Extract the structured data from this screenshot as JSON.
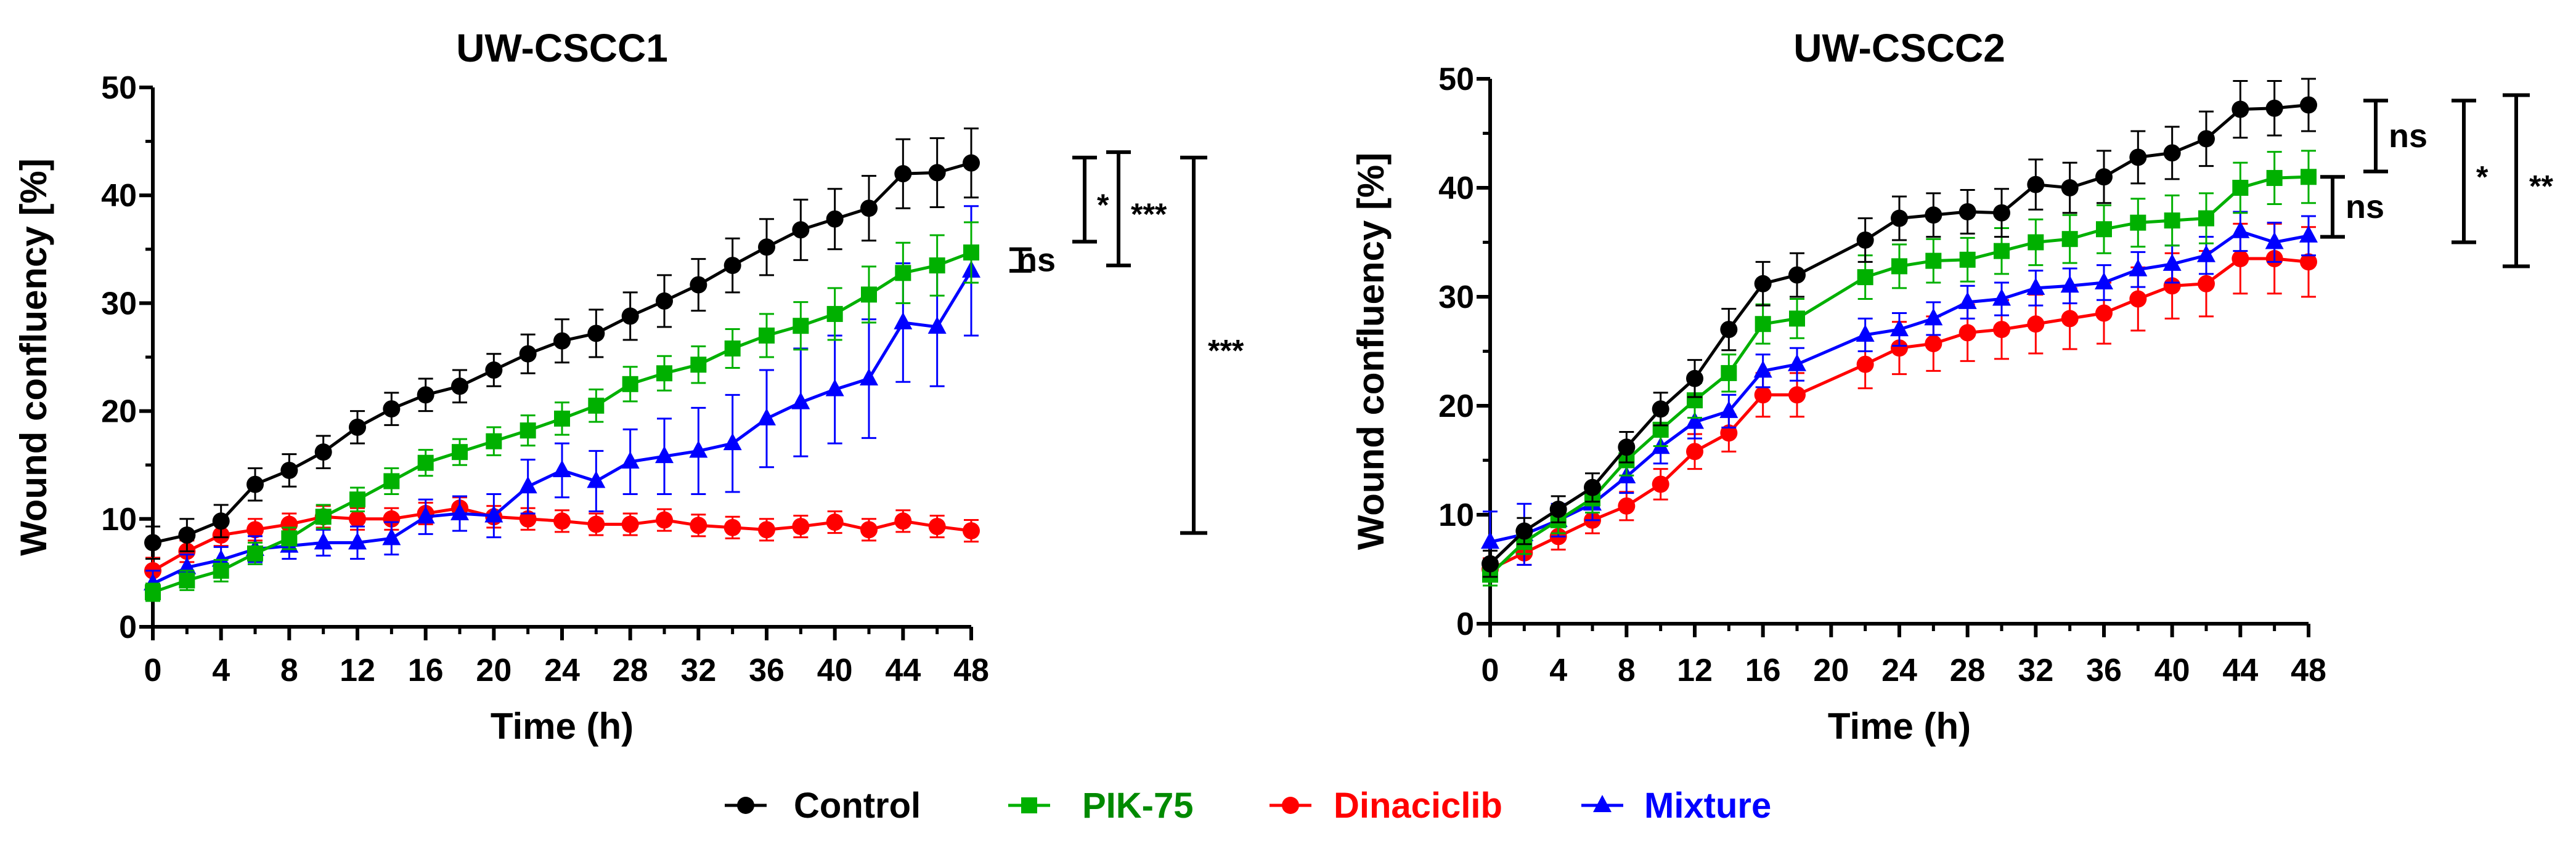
{
  "chart_data": [
    {
      "type": "line",
      "title": "UW-CSCC1",
      "xlabel": "Time (h)",
      "ylabel": "Wound confluency [%]",
      "xlim": [
        0,
        48
      ],
      "ylim": [
        0,
        50
      ],
      "xticks": [
        "0",
        "4",
        "8",
        "12",
        "16",
        "20",
        "24",
        "28",
        "32",
        "36",
        "40",
        "44",
        "48"
      ],
      "yticks": [
        "0",
        "10",
        "20",
        "30",
        "40",
        "50"
      ],
      "x": [
        0,
        2,
        4,
        6,
        8,
        10,
        12,
        14,
        16,
        18,
        20,
        22,
        24,
        26,
        28,
        30,
        32,
        34,
        36,
        38,
        40,
        42,
        44,
        46,
        48
      ],
      "series": [
        {
          "name": "Control",
          "values": [
            7.8,
            8.5,
            9.8,
            13.2,
            14.5,
            16.2,
            18.5,
            20.2,
            21.5,
            22.3,
            23.8,
            25.3,
            26.5,
            27.2,
            28.8,
            30.2,
            31.7,
            33.5,
            35.2,
            36.8,
            37.8,
            38.8,
            42.0,
            42.1,
            43.0
          ],
          "errors": [
            1.5,
            1.5,
            1.5,
            1.5,
            1.5,
            1.5,
            1.5,
            1.5,
            1.5,
            1.5,
            1.5,
            1.8,
            2.0,
            2.2,
            2.2,
            2.4,
            2.4,
            2.5,
            2.6,
            2.8,
            2.8,
            3.0,
            3.2,
            3.2,
            3.2
          ]
        },
        {
          "name": "PIK-75",
          "values": [
            3.2,
            4.3,
            5.2,
            6.8,
            8.2,
            10.2,
            11.8,
            13.5,
            15.2,
            16.2,
            17.2,
            18.2,
            19.3,
            20.5,
            22.5,
            23.5,
            24.3,
            25.8,
            27.0,
            27.9,
            29.0,
            30.8,
            32.8,
            33.5,
            34.7
          ],
          "errors": [
            0.8,
            0.9,
            1.0,
            1.0,
            1.0,
            1.1,
            1.1,
            1.2,
            1.2,
            1.2,
            1.3,
            1.4,
            1.5,
            1.5,
            1.6,
            1.6,
            1.7,
            1.8,
            2.0,
            2.2,
            2.4,
            2.6,
            2.8,
            2.8,
            2.8
          ]
        },
        {
          "name": "Dinaciclib",
          "values": [
            5.2,
            7.0,
            8.5,
            9.0,
            9.5,
            10.2,
            10.0,
            10.0,
            10.5,
            11.0,
            10.2,
            10.0,
            9.8,
            9.5,
            9.5,
            9.9,
            9.4,
            9.2,
            9.0,
            9.3,
            9.7,
            9.0,
            9.8,
            9.3,
            8.9
          ],
          "errors": [
            1.2,
            1.0,
            1.0,
            1.0,
            1.0,
            1.0,
            1.0,
            1.0,
            1.0,
            1.0,
            1.0,
            1.0,
            1.0,
            1.0,
            1.0,
            1.0,
            1.0,
            1.0,
            1.0,
            1.0,
            1.0,
            1.0,
            1.0,
            1.0,
            1.0
          ]
        },
        {
          "name": "Mixture",
          "values": [
            4.0,
            5.5,
            6.2,
            7.2,
            7.5,
            7.8,
            7.8,
            8.2,
            10.2,
            10.5,
            10.3,
            13.0,
            14.5,
            13.5,
            15.3,
            15.8,
            16.3,
            17.0,
            19.3,
            20.8,
            22.0,
            23.0,
            28.2,
            27.8,
            33.0
          ],
          "errors": [
            1.2,
            1.2,
            1.2,
            1.2,
            1.2,
            1.2,
            1.5,
            1.5,
            1.6,
            1.6,
            2.0,
            2.5,
            2.5,
            2.8,
            3.0,
            3.5,
            4.0,
            4.5,
            4.5,
            5.0,
            5.0,
            5.5,
            5.5,
            5.5,
            6.0
          ]
        }
      ],
      "significance": [
        {
          "label": "ns",
          "y_range": [
            33.0,
            35.0
          ]
        },
        {
          "label": "*",
          "y_range": [
            35.7,
            43.5
          ]
        },
        {
          "label": "***",
          "y_range": [
            33.5,
            44.0
          ]
        },
        {
          "label": "***",
          "y_range": [
            8.7,
            43.5
          ]
        }
      ]
    },
    {
      "type": "line",
      "title": "UW-CSCC2",
      "xlabel": "Time (h)",
      "ylabel": "Wound confluency [%]",
      "xlim": [
        0,
        48
      ],
      "ylim": [
        0,
        50
      ],
      "xticks": [
        "0",
        "4",
        "8",
        "12",
        "16",
        "20",
        "24",
        "28",
        "32",
        "36",
        "40",
        "44",
        "48"
      ],
      "yticks": [
        "0",
        "10",
        "20",
        "30",
        "40",
        "50"
      ],
      "x": [
        0,
        2,
        4,
        6,
        8,
        10,
        12,
        14,
        16,
        18,
        22,
        24,
        26,
        28,
        30,
        32,
        34,
        36,
        38,
        40,
        42,
        44,
        46,
        48
      ],
      "series": [
        {
          "name": "Control",
          "values": [
            5.5,
            8.5,
            10.5,
            12.5,
            16.2,
            19.7,
            22.5,
            27.0,
            31.2,
            32.0,
            35.2,
            37.2,
            37.5,
            37.8,
            37.7,
            40.3,
            40.0,
            41.0,
            42.8,
            43.2,
            44.5,
            47.2,
            47.3,
            47.6
          ],
          "errors": [
            1.2,
            1.2,
            1.2,
            1.3,
            1.4,
            1.5,
            1.7,
            1.9,
            2.0,
            2.0,
            2.0,
            2.0,
            2.0,
            2.0,
            2.2,
            2.3,
            2.3,
            2.4,
            2.4,
            2.4,
            2.5,
            2.6,
            2.5,
            2.4
          ]
        },
        {
          "name": "PIK-75",
          "values": [
            4.5,
            7.5,
            9.5,
            11.5,
            15.0,
            17.8,
            20.5,
            23.0,
            27.5,
            28.0,
            31.8,
            32.8,
            33.3,
            33.4,
            34.2,
            35.0,
            35.3,
            36.2,
            36.8,
            37.0,
            37.2,
            40.0,
            40.9,
            41.0
          ],
          "errors": [
            1.0,
            1.1,
            1.2,
            1.3,
            1.4,
            1.5,
            1.6,
            1.7,
            1.8,
            1.8,
            2.0,
            2.0,
            2.0,
            2.0,
            2.1,
            2.1,
            2.2,
            2.2,
            2.2,
            2.3,
            2.3,
            2.3,
            2.4,
            2.4
          ]
        },
        {
          "name": "Dinaciclib",
          "values": [
            5.0,
            6.5,
            8.0,
            9.5,
            10.8,
            12.8,
            15.8,
            17.5,
            21.0,
            21.0,
            23.8,
            25.3,
            25.7,
            26.7,
            27.0,
            27.5,
            28.0,
            28.5,
            29.8,
            31.0,
            31.2,
            33.5,
            33.5,
            33.2
          ],
          "errors": [
            1.0,
            1.1,
            1.2,
            1.2,
            1.3,
            1.4,
            1.6,
            1.7,
            2.0,
            2.0,
            2.2,
            2.4,
            2.5,
            2.6,
            2.7,
            2.7,
            2.8,
            2.8,
            2.9,
            3.0,
            3.0,
            3.2,
            3.2,
            3.2
          ]
        },
        {
          "name": "Mixture",
          "values": [
            7.5,
            8.2,
            9.5,
            11.0,
            13.5,
            16.2,
            18.5,
            19.5,
            23.2,
            23.8,
            26.5,
            27.0,
            28.0,
            29.5,
            29.8,
            30.8,
            31.0,
            31.3,
            32.5,
            33.0,
            33.8,
            36.0,
            35.0,
            35.6
          ],
          "errors": [
            2.8,
            2.8,
            1.5,
            1.5,
            1.5,
            1.5,
            1.5,
            1.5,
            1.5,
            1.5,
            1.5,
            1.5,
            1.5,
            1.5,
            1.5,
            1.6,
            1.6,
            1.6,
            1.6,
            1.7,
            1.7,
            1.8,
            1.8,
            1.8
          ]
        }
      ],
      "significance": [
        {
          "label": "ns",
          "y_range": [
            41.5,
            48.0
          ]
        },
        {
          "label": "ns",
          "y_range": [
            35.5,
            41.0
          ]
        },
        {
          "label": "*",
          "y_range": [
            35.0,
            48.0
          ]
        },
        {
          "label": "**",
          "y_range": [
            32.8,
            48.5
          ]
        }
      ]
    }
  ],
  "legend": {
    "items": [
      {
        "label": "Control",
        "color": "#000000",
        "marker": "circle"
      },
      {
        "label": "PIK-75",
        "color": "#00b000",
        "marker": "square"
      },
      {
        "label": "Dinaciclib",
        "color": "#ff0000",
        "marker": "circle"
      },
      {
        "label": "Mixture",
        "color": "#0000ff",
        "marker": "triangle"
      }
    ]
  },
  "colors": {
    "Control": "#000000",
    "PIK-75": "#00b000",
    "Dinaciclib": "#ff0000",
    "Mixture": "#0000ff",
    "PIK-75-label": "#008a00"
  }
}
